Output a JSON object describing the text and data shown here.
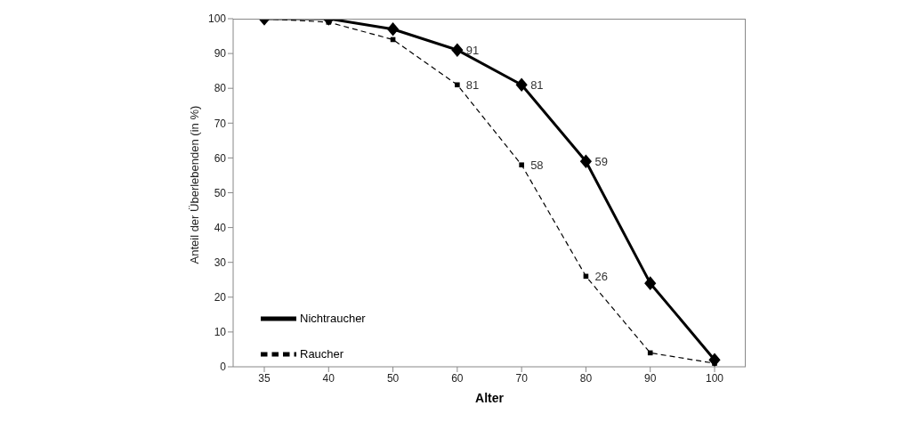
{
  "chart_data": {
    "type": "line",
    "xlabel": "Alter",
    "ylabel": "Anteil der Überlebenden (in %)",
    "categories": [
      "35",
      "40",
      "50",
      "60",
      "70",
      "80",
      "90",
      "100"
    ],
    "series": [
      {
        "name": "Nichtraucher",
        "color": "#000000",
        "marker": "diamond",
        "line_style": "solid",
        "values": [
          100,
          100,
          97,
          91,
          81,
          59,
          24,
          2
        ],
        "value_labels": [
          null,
          null,
          null,
          "91",
          "81",
          "59",
          null,
          null
        ]
      },
      {
        "name": "Raucher",
        "color": "#000000",
        "marker": "square",
        "line_style": "dashed",
        "values": [
          100,
          99,
          94,
          81,
          58,
          26,
          4,
          1
        ],
        "value_labels": [
          null,
          null,
          null,
          "81",
          "58",
          "26",
          null,
          null
        ]
      }
    ],
    "ylim": [
      0,
      100
    ],
    "yticks": [
      0,
      10,
      20,
      30,
      40,
      50,
      60,
      70,
      80,
      90,
      100
    ],
    "grid": false,
    "legend": "bottom left"
  }
}
